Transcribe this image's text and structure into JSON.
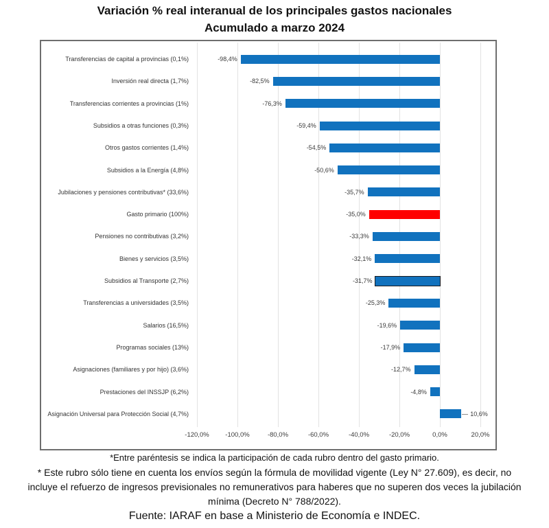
{
  "title": "Variación % real interanual de los principales gastos nacionales",
  "subtitle": "Acumulado a marzo 2024",
  "chart_data": {
    "type": "bar",
    "orientation": "horizontal",
    "title": "Variación % real interanual de los principales gastos nacionales",
    "subtitle": "Acumulado a marzo 2024",
    "xlabel": "",
    "ylabel": "",
    "xlim": [
      -120,
      20
    ],
    "grid": true,
    "legend": "none",
    "x_tick_labels": [
      "-120,0%",
      "-100,0%",
      "-80,0%",
      "-60,0%",
      "-40,0%",
      "-20,0%",
      "0,0%",
      "20,0%"
    ],
    "x_tick_values": [
      -120,
      -100,
      -80,
      -60,
      -40,
      -20,
      0,
      20
    ],
    "colors": {
      "bar_default": "#1172be",
      "bar_highlight": "#fe0000",
      "bar_outline": "#17181c",
      "gridline": "#e2e2e2",
      "chart_border": "#6e6e6e"
    },
    "rows": [
      {
        "label": "Transferencias de capital a provincias (0,1%)",
        "value": -98.4,
        "value_label": "-98,4%",
        "style": "blue"
      },
      {
        "label": "Inversión real directa (1,7%)",
        "value": -82.5,
        "value_label": "-82,5%",
        "style": "blue"
      },
      {
        "label": "Transferencias corrientes a provincias (1%)",
        "value": -76.3,
        "value_label": "-76,3%",
        "style": "blue"
      },
      {
        "label": "Subsidios a otras funciones (0,3%)",
        "value": -59.4,
        "value_label": "-59,4%",
        "style": "blue"
      },
      {
        "label": "Otros gastos corrientes (1,4%)",
        "value": -54.5,
        "value_label": "-54,5%",
        "style": "blue"
      },
      {
        "label": "Subsidios a la Energía (4,8%)",
        "value": -50.6,
        "value_label": "-50,6%",
        "style": "blue"
      },
      {
        "label": "Jubilaciones y pensiones contributivas* (33,6%)",
        "value": -35.7,
        "value_label": "-35,7%",
        "style": "blue"
      },
      {
        "label": "Gasto primario (100%)",
        "value": -35.0,
        "value_label": "-35,0%",
        "style": "red"
      },
      {
        "label": "Pensiones no contributivas (3,2%)",
        "value": -33.3,
        "value_label": "-33,3%",
        "style": "blue"
      },
      {
        "label": "Bienes y servicios (3,5%)",
        "value": -32.1,
        "value_label": "-32,1%",
        "style": "blue"
      },
      {
        "label": "Subsidios al Transporte (2,7%)",
        "value": -31.7,
        "value_label": "-31,7%",
        "style": "blue-outlined"
      },
      {
        "label": "Transferencias a universidades (3,5%)",
        "value": -25.3,
        "value_label": "-25,3%",
        "style": "blue"
      },
      {
        "label": "Salarios (16,5%)",
        "value": -19.6,
        "value_label": "-19,6%",
        "style": "blue"
      },
      {
        "label": "Programas sociales (13%)",
        "value": -17.9,
        "value_label": "-17,9%",
        "style": "blue"
      },
      {
        "label": "Asignaciones (familiares y por hijo) (3,6%)",
        "value": -12.7,
        "value_label": "-12,7%",
        "style": "blue"
      },
      {
        "label": "Prestaciones del INSSJP (6,2%)",
        "value": -4.8,
        "value_label": "-4,8%",
        "style": "blue"
      },
      {
        "label": "Asignación Universal para Protección Social (4,7%)",
        "value": 10.6,
        "value_label": "10,6%",
        "style": "blue"
      }
    ]
  },
  "footnotes": {
    "line1": "*Entre paréntesis se indica la participación de cada rubro dentro del gasto primario.",
    "line2": "* Este rubro sólo tiene en cuenta los envíos según la fórmula de movilidad vigente (Ley N° 27.609), es decir, no incluye el refuerzo de ingresos previsionales no remunerativos para haberes que no superen dos veces la jubilación mínima (Decreto N° 788/2022).",
    "source": "Fuente: IARAF en base a Ministerio de Economía e INDEC."
  }
}
